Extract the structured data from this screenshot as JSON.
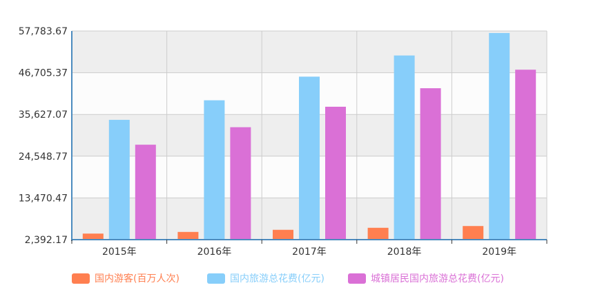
{
  "chart_data": {
    "type": "bar",
    "categories": [
      "2015年",
      "2016年",
      "2017年",
      "2018年",
      "2019年"
    ],
    "yticks": [
      "2,392.17",
      "13,470.47",
      "24,548.77",
      "35,627.07",
      "46,705.37",
      "57,783.67"
    ],
    "ylim": [
      2392.17,
      57783.67
    ],
    "grid": true,
    "legend_position": "bottom",
    "series": [
      {
        "name": "国内游客(百万人次)",
        "color": "#FF7F50",
        "values": [
          4000,
          4440,
          5001,
          5539,
          6006
        ]
      },
      {
        "name": "国内旅游总花费(亿元)",
        "color": "#87CEFA",
        "values": [
          34195,
          39390,
          45661,
          51278,
          57251
        ]
      },
      {
        "name": "城镇居民国内旅游总花费(亿元)",
        "color": "#DA70D6",
        "values": [
          27600,
          32241,
          37673,
          42590,
          47509
        ]
      }
    ]
  }
}
